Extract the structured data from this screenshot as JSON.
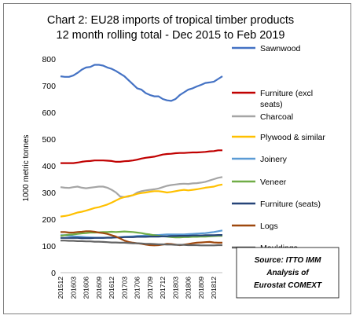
{
  "chart_data": {
    "type": "line",
    "title_line1": "Chart 2: EU28 imports of tropical timber products",
    "title_line2": "12 month rolling total - Dec 2015 to Feb 2019",
    "ylabel": "1000 metric tonnes",
    "xlabel": "",
    "ylim": [
      0,
      800
    ],
    "yticks": [
      0,
      100,
      200,
      300,
      400,
      500,
      600,
      700,
      800
    ],
    "x": [
      "201512",
      "201601",
      "201602",
      "201603",
      "201604",
      "201605",
      "201606",
      "201607",
      "201608",
      "201609",
      "201610",
      "201611",
      "201612",
      "201701",
      "201702",
      "201703",
      "201704",
      "201705",
      "201706",
      "201707",
      "201708",
      "201709",
      "201710",
      "201711",
      "201712",
      "201801",
      "201802",
      "201803",
      "201804",
      "201805",
      "201806",
      "201807",
      "201808",
      "201809",
      "201810",
      "201811",
      "201812",
      "201901",
      "201902"
    ],
    "xtick_labels": [
      "201512",
      "201603",
      "201606",
      "201609",
      "201612",
      "201703",
      "201706",
      "201709",
      "201712",
      "201803",
      "201806",
      "201809",
      "201812"
    ],
    "grid": false,
    "legend_position": "right",
    "series": [
      {
        "name": "Sawnwood",
        "color": "#4472c4",
        "width": 2.2,
        "values": [
          735,
          733,
          733,
          738,
          748,
          760,
          768,
          770,
          778,
          778,
          775,
          768,
          763,
          755,
          745,
          735,
          720,
          705,
          690,
          685,
          672,
          665,
          660,
          660,
          650,
          645,
          643,
          650,
          665,
          675,
          685,
          690,
          697,
          703,
          710,
          712,
          715,
          725,
          735
        ]
      },
      {
        "name": "Furniture (excl seats)",
        "color": "#c00000",
        "width": 2.2,
        "values": [
          410,
          410,
          410,
          410,
          412,
          415,
          417,
          418,
          420,
          420,
          420,
          419,
          418,
          415,
          415,
          417,
          418,
          420,
          423,
          427,
          430,
          432,
          434,
          438,
          442,
          444,
          445,
          447,
          448,
          448,
          449,
          450,
          450,
          451,
          452,
          454,
          455,
          458,
          458
        ]
      },
      {
        "name": "Charcoal",
        "color": "#a5a5a5",
        "width": 2.2,
        "values": [
          320,
          318,
          317,
          320,
          322,
          318,
          316,
          318,
          320,
          322,
          322,
          318,
          310,
          300,
          285,
          283,
          285,
          290,
          300,
          305,
          308,
          310,
          312,
          315,
          320,
          325,
          328,
          330,
          332,
          333,
          332,
          334,
          335,
          337,
          340,
          345,
          350,
          355,
          358
        ]
      },
      {
        "name": "Plywood & similar",
        "color": "#ffc000",
        "width": 2.2,
        "values": [
          210,
          212,
          215,
          220,
          225,
          228,
          232,
          237,
          242,
          245,
          250,
          255,
          262,
          270,
          278,
          283,
          287,
          290,
          295,
          298,
          300,
          303,
          305,
          305,
          303,
          300,
          302,
          305,
          308,
          310,
          308,
          310,
          312,
          315,
          318,
          320,
          322,
          327,
          330
        ]
      },
      {
        "name": "Joinery",
        "color": "#5b9bd5",
        "width": 2.2,
        "values": [
          140,
          140,
          138,
          136,
          135,
          134,
          133,
          132,
          131,
          131,
          131,
          131,
          131,
          132,
          133,
          134,
          135,
          136,
          137,
          138,
          139,
          140,
          141,
          141,
          142,
          143,
          143,
          143,
          143,
          143,
          144,
          145,
          146,
          147,
          148,
          150,
          152,
          155,
          158
        ]
      },
      {
        "name": "Veneer",
        "color": "#70ad47",
        "width": 2.2,
        "values": [
          138,
          140,
          142,
          143,
          145,
          147,
          148,
          150,
          150,
          151,
          152,
          152,
          153,
          152,
          153,
          154,
          153,
          152,
          150,
          148,
          145,
          143,
          140,
          138,
          136,
          135,
          133,
          132,
          132,
          133,
          133,
          134,
          134,
          135,
          135,
          136,
          137,
          138,
          138
        ]
      },
      {
        "name": "Furniture (seats)",
        "color": "#264478",
        "width": 2.2,
        "values": [
          130,
          130,
          130,
          130,
          130,
          129,
          129,
          129,
          130,
          130,
          130,
          131,
          131,
          132,
          132,
          133,
          133,
          133,
          134,
          134,
          134,
          135,
          135,
          135,
          136,
          136,
          137,
          137,
          138,
          138,
          138,
          139,
          139,
          139,
          140,
          140,
          140,
          141,
          141
        ]
      },
      {
        "name": "Logs",
        "color": "#9e480e",
        "width": 2.2,
        "values": [
          152,
          152,
          150,
          150,
          152,
          153,
          155,
          155,
          153,
          150,
          148,
          145,
          140,
          135,
          128,
          120,
          115,
          112,
          110,
          108,
          105,
          103,
          102,
          103,
          105,
          108,
          107,
          105,
          103,
          105,
          107,
          110,
          112,
          113,
          114,
          115,
          113,
          112,
          112
        ]
      },
      {
        "name": "Mouldings",
        "color": "#636363",
        "width": 2.2,
        "values": [
          120,
          120,
          119,
          119,
          118,
          118,
          117,
          117,
          116,
          116,
          115,
          114,
          113,
          113,
          112,
          112,
          111,
          110,
          110,
          109,
          108,
          108,
          107,
          106,
          106,
          105,
          105,
          104,
          104,
          104,
          103,
          103,
          103,
          102,
          102,
          102,
          102,
          103,
          103
        ]
      }
    ]
  },
  "source_lines": [
    "Source: ITTO IMM",
    "Analysis of",
    "Eurostat COMEXT"
  ]
}
